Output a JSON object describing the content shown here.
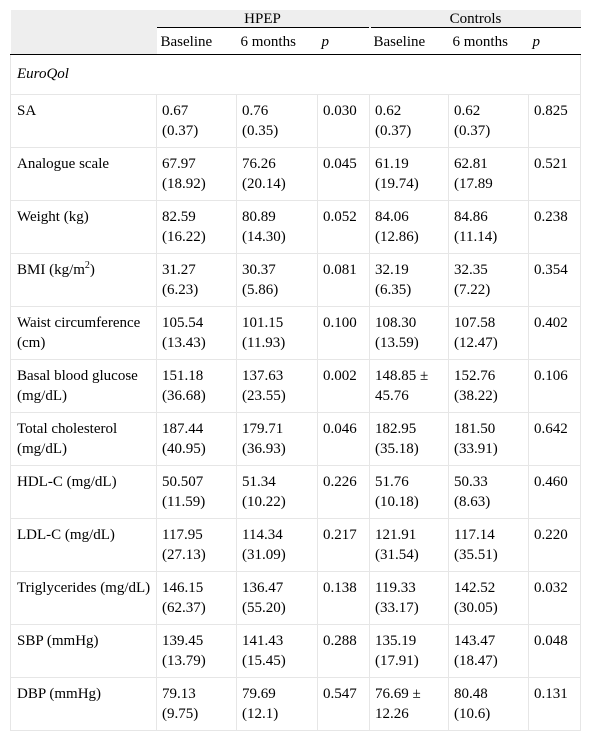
{
  "header": {
    "groups": [
      "HPEP",
      "Controls"
    ],
    "subheaders": [
      "Baseline",
      "6 months",
      "p",
      "Baseline",
      "6 months",
      "p"
    ]
  },
  "section": "EuroQol",
  "rows": [
    {
      "label": "SA",
      "hpep_baseline": [
        "0.67",
        "(0.37)"
      ],
      "hpep_6m": [
        "0.76",
        "(0.35)"
      ],
      "hpep_p": "0.030",
      "ctrl_baseline": [
        "0.62",
        "(0.37)"
      ],
      "ctrl_6m": [
        "0.62",
        "(0.37)"
      ],
      "ctrl_p": "0.825"
    },
    {
      "label": "Analogue scale",
      "hpep_baseline": [
        "67.97",
        "(18.92)"
      ],
      "hpep_6m": [
        "76.26",
        "(20.14)"
      ],
      "hpep_p": "0.045",
      "ctrl_baseline": [
        "61.19",
        "(19.74)"
      ],
      "ctrl_6m": [
        "62.81",
        "(17.89"
      ],
      "ctrl_p": "0.521"
    },
    {
      "label": "Weight (kg)",
      "hpep_baseline": [
        "82.59",
        "(16.22)"
      ],
      "hpep_6m": [
        "80.89",
        "(14.30)"
      ],
      "hpep_p": "0.052",
      "ctrl_baseline": [
        "84.06",
        "(12.86)"
      ],
      "ctrl_6m": [
        "84.86",
        "(11.14)"
      ],
      "ctrl_p": "0.238"
    },
    {
      "label": "BMI (kg/m",
      "label_sup": "2",
      "label_after": ")",
      "hpep_baseline": [
        "31.27",
        "(6.23)"
      ],
      "hpep_6m": [
        "30.37",
        "(5.86)"
      ],
      "hpep_p": "0.081",
      "ctrl_baseline": [
        "32.19",
        "(6.35)"
      ],
      "ctrl_6m": [
        "32.35",
        "(7.22)"
      ],
      "ctrl_p": "0.354"
    },
    {
      "label": "Waist circumference (cm)",
      "hpep_baseline": [
        "105.54",
        "(13.43)"
      ],
      "hpep_6m": [
        "101.15",
        "(11.93)"
      ],
      "hpep_p": "0.100",
      "ctrl_baseline": [
        "108.30",
        "(13.59)"
      ],
      "ctrl_6m": [
        "107.58",
        "(12.47)"
      ],
      "ctrl_p": "0.402"
    },
    {
      "label": "Basal blood glucose (mg/dL)",
      "hpep_baseline": [
        "151.18",
        "(36.68)"
      ],
      "hpep_6m": [
        "137.63",
        "(23.55)"
      ],
      "hpep_p": "0.002",
      "ctrl_baseline": [
        "148.85 ±",
        "45.76"
      ],
      "ctrl_6m": [
        "152.76",
        "(38.22)"
      ],
      "ctrl_p": "0.106"
    },
    {
      "label": "Total cholesterol (mg/dL)",
      "hpep_baseline": [
        "187.44",
        "(40.95)"
      ],
      "hpep_6m": [
        "179.71",
        "(36.93)"
      ],
      "hpep_p": "0.046",
      "ctrl_baseline": [
        "182.95",
        "(35.18)"
      ],
      "ctrl_6m": [
        "181.50",
        "(33.91)"
      ],
      "ctrl_p": "0.642"
    },
    {
      "label": "HDL-C (mg/dL)",
      "hpep_baseline": [
        "50.507",
        "(11.59)"
      ],
      "hpep_6m": [
        "51.34",
        "(10.22)"
      ],
      "hpep_p": "0.226",
      "ctrl_baseline": [
        "51.76",
        "(10.18)"
      ],
      "ctrl_6m": [
        "50.33",
        "(8.63)"
      ],
      "ctrl_p": "0.460"
    },
    {
      "label": "LDL-C (mg/dL)",
      "hpep_baseline": [
        "117.95",
        "(27.13)"
      ],
      "hpep_6m": [
        "114.34",
        "(31.09)"
      ],
      "hpep_p": "0.217",
      "ctrl_baseline": [
        "121.91",
        "(31.54)"
      ],
      "ctrl_6m": [
        "117.14",
        "(35.51)"
      ],
      "ctrl_p": "0.220"
    },
    {
      "label": "Triglycerides (mg/dL)",
      "hpep_baseline": [
        "146.15",
        "(62.37)"
      ],
      "hpep_6m": [
        "136.47",
        "(55.20)"
      ],
      "hpep_p": "0.138",
      "ctrl_baseline": [
        "119.33",
        "(33.17)"
      ],
      "ctrl_6m": [
        "142.52",
        "(30.05)"
      ],
      "ctrl_p": "0.032"
    },
    {
      "label": "SBP (mmHg)",
      "hpep_baseline": [
        "139.45",
        "(13.79)"
      ],
      "hpep_6m": [
        "141.43",
        "(15.45)"
      ],
      "hpep_p": "0.288",
      "ctrl_baseline": [
        "135.19",
        "(17.91)"
      ],
      "ctrl_6m": [
        "143.47",
        "(18.47)"
      ],
      "ctrl_p": "0.048"
    },
    {
      "label": "DBP (mmHg)",
      "hpep_baseline": [
        "79.13",
        "(9.75)"
      ],
      "hpep_6m": [
        "79.69",
        "(12.1)"
      ],
      "hpep_p": "0.547",
      "ctrl_baseline": [
        "76.69 ±",
        "12.26"
      ],
      "ctrl_6m": [
        "80.48",
        "(10.6)"
      ],
      "ctrl_p": "0.131"
    }
  ]
}
